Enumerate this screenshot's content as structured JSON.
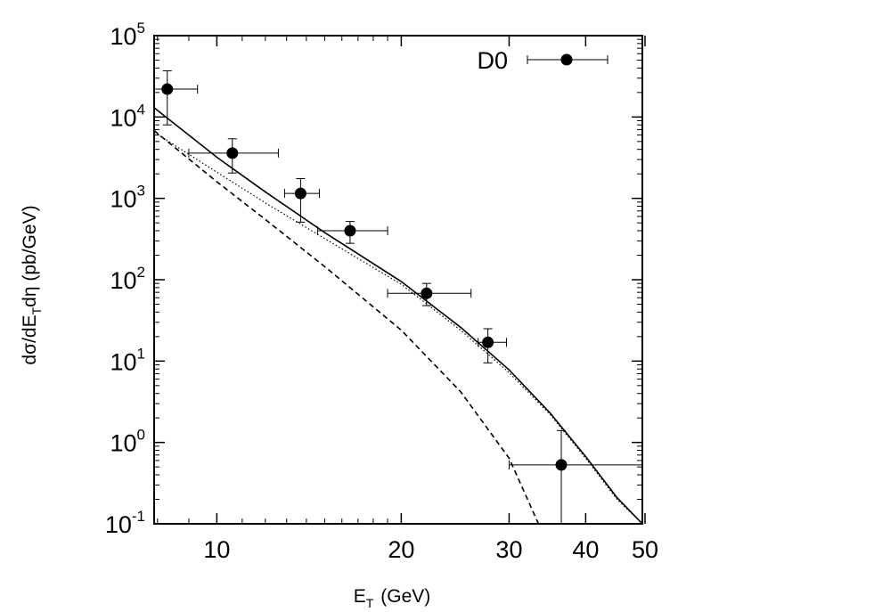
{
  "chart_data": {
    "type": "scatter",
    "title": "",
    "xlabel": "E",
    "xlabel_sub": "T",
    "xlabel_unit": "(GeV)",
    "ylabel_parts": [
      "dσ/dE",
      "T",
      "dη (pb/GeV)"
    ],
    "x_scale": "log",
    "y_scale": "log",
    "xlim": [
      7.9,
      49.5
    ],
    "ylim": [
      0.1,
      100000
    ],
    "x_ticks": [
      {
        "value": 10,
        "label": "10"
      },
      {
        "value": 20,
        "label": "20"
      },
      {
        "value": 30,
        "label": "30"
      },
      {
        "value": 40,
        "label": "40"
      },
      {
        "value": 50,
        "label": "50"
      }
    ],
    "y_ticks": [
      {
        "value": 0.1,
        "base": "10",
        "exp": "-1"
      },
      {
        "value": 1,
        "base": "10",
        "exp": "0"
      },
      {
        "value": 10,
        "base": "10",
        "exp": "1"
      },
      {
        "value": 100,
        "base": "10",
        "exp": "2"
      },
      {
        "value": 1000,
        "base": "10",
        "exp": "3"
      },
      {
        "value": 10000,
        "base": "10",
        "exp": "4"
      },
      {
        "value": 100000,
        "base": "10",
        "exp": "5"
      }
    ],
    "grid": false,
    "legend_position": "top-right",
    "series": [
      {
        "name": "D0",
        "kind": "points",
        "color": "#000000",
        "points": [
          {
            "x": 8.3,
            "y": 22000,
            "xerr": [
              0.7,
              1.0
            ],
            "yerr": [
              14000,
              15000
            ]
          },
          {
            "x": 10.6,
            "y": 3600,
            "xerr": [
              1.6,
              2.0
            ],
            "yerr": [
              1550,
              1800
            ]
          },
          {
            "x": 13.7,
            "y": 1150,
            "xerr": [
              0.8,
              1.0
            ],
            "yerr": [
              640,
              600
            ]
          },
          {
            "x": 16.5,
            "y": 400,
            "xerr": [
              1.9,
              2.5
            ],
            "yerr": [
              120,
              120
            ]
          },
          {
            "x": 22.0,
            "y": 68,
            "xerr": [
              3.0,
              4.0
            ],
            "yerr": [
              20,
              22
            ]
          },
          {
            "x": 27.7,
            "y": 17,
            "xerr": [
              1.0,
              2.0
            ],
            "yerr": [
              7.5,
              8
            ]
          },
          {
            "x": 36.5,
            "y": 0.53,
            "xerr": [
              6.5,
              13.0
            ],
            "yerr": [
              0.43,
              0.87
            ]
          }
        ]
      },
      {
        "kind": "line",
        "style": "solid",
        "color": "#000000",
        "x": [
          7.9,
          10,
          12,
          15,
          20,
          25,
          30,
          35,
          40,
          45,
          49.5
        ],
        "y": [
          13000,
          3200,
          1200,
          380,
          95,
          26,
          7.8,
          2.3,
          0.67,
          0.21,
          0.1
        ]
      },
      {
        "kind": "line",
        "style": "dotted",
        "color": "#000000",
        "x": [
          7.9,
          10,
          12,
          15,
          20,
          25,
          30,
          35,
          40,
          45,
          49.5
        ],
        "y": [
          6500,
          2100,
          880,
          320,
          88,
          24,
          7.2,
          2.2,
          0.64,
          0.2,
          0.1
        ]
      },
      {
        "kind": "line",
        "style": "dashed",
        "color": "#000000",
        "x": [
          7.9,
          10,
          12,
          15,
          20,
          25,
          30,
          33.5
        ],
        "y": [
          6800,
          1600,
          550,
          145,
          24,
          4.2,
          0.64,
          0.1
        ]
      }
    ]
  }
}
